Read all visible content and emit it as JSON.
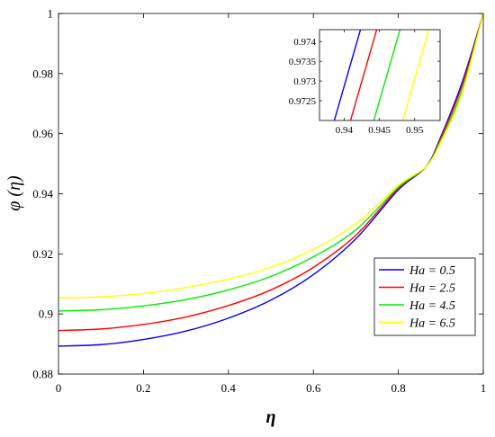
{
  "chart_data": {
    "type": "line",
    "xlabel": "η",
    "ylabel": "φ (η)",
    "xlim": [
      0,
      1
    ],
    "ylim": [
      0.88,
      1
    ],
    "xticks": [
      0,
      0.2,
      0.4,
      0.6,
      0.8,
      1
    ],
    "xtick_labels": [
      "0",
      "0.2",
      "0.4",
      "0.6",
      "0.8",
      "1"
    ],
    "yticks": [
      0.88,
      0.9,
      0.92,
      0.94,
      0.96,
      0.98,
      1
    ],
    "ytick_labels": [
      "0.88",
      "0.9",
      "0.92",
      "0.94",
      "0.96",
      "0.98",
      "1"
    ],
    "legend_position": "bottom-right",
    "grid": false,
    "x": [
      0,
      0.1,
      0.2,
      0.3,
      0.4,
      0.5,
      0.6,
      0.7,
      0.8,
      0.865,
      0.9,
      0.95,
      1.0
    ],
    "series": [
      {
        "name": "Ha = 0.5",
        "color": "#0000ff",
        "values": [
          0.8893,
          0.8898,
          0.8915,
          0.8943,
          0.8986,
          0.9046,
          0.9131,
          0.925,
          0.9413,
          0.949,
          0.959,
          0.977,
          1.0
        ]
      },
      {
        "name": "Ha = 2.5",
        "color": "#ff0000",
        "values": [
          0.8945,
          0.895,
          0.8965,
          0.899,
          0.9028,
          0.908,
          0.9155,
          0.9262,
          0.9418,
          0.949,
          0.9585,
          0.976,
          1.0
        ]
      },
      {
        "name": "Ha = 4.5",
        "color": "#00ee00",
        "values": [
          0.901,
          0.9014,
          0.9027,
          0.9048,
          0.908,
          0.9125,
          0.919,
          0.928,
          0.9422,
          0.949,
          0.9578,
          0.9745,
          1.0
        ]
      },
      {
        "name": "Ha = 6.5",
        "color": "#ffff00",
        "values": [
          0.9053,
          0.9057,
          0.9068,
          0.9088,
          0.9116,
          0.9155,
          0.9215,
          0.93,
          0.9428,
          0.949,
          0.9572,
          0.9735,
          1.0
        ]
      }
    ],
    "inset": {
      "xlim": [
        0.9365,
        0.9536
      ],
      "ylim": [
        0.972,
        0.9743
      ],
      "xticks": [
        0.94,
        0.945,
        0.95
      ],
      "xtick_labels": [
        "0.94",
        "0.945",
        "0.95"
      ],
      "yticks": [
        0.9725,
        0.973,
        0.9735,
        0.974
      ],
      "ytick_labels": [
        "0.9725",
        "0.973",
        "0.9735",
        "0.974"
      ],
      "slope": 0.62,
      "crossings": [
        {
          "name": "Ha = 0.5",
          "color": "#0000ff",
          "x": 0.9386,
          "y": 0.972
        },
        {
          "name": "Ha = 2.5",
          "color": "#ff0000",
          "x": 0.9409,
          "y": 0.972
        },
        {
          "name": "Ha = 4.5",
          "color": "#00ee00",
          "x": 0.9442,
          "y": 0.972
        },
        {
          "name": "Ha = 6.5",
          "color": "#ffff00",
          "x": 0.9483,
          "y": 0.972
        }
      ]
    }
  }
}
